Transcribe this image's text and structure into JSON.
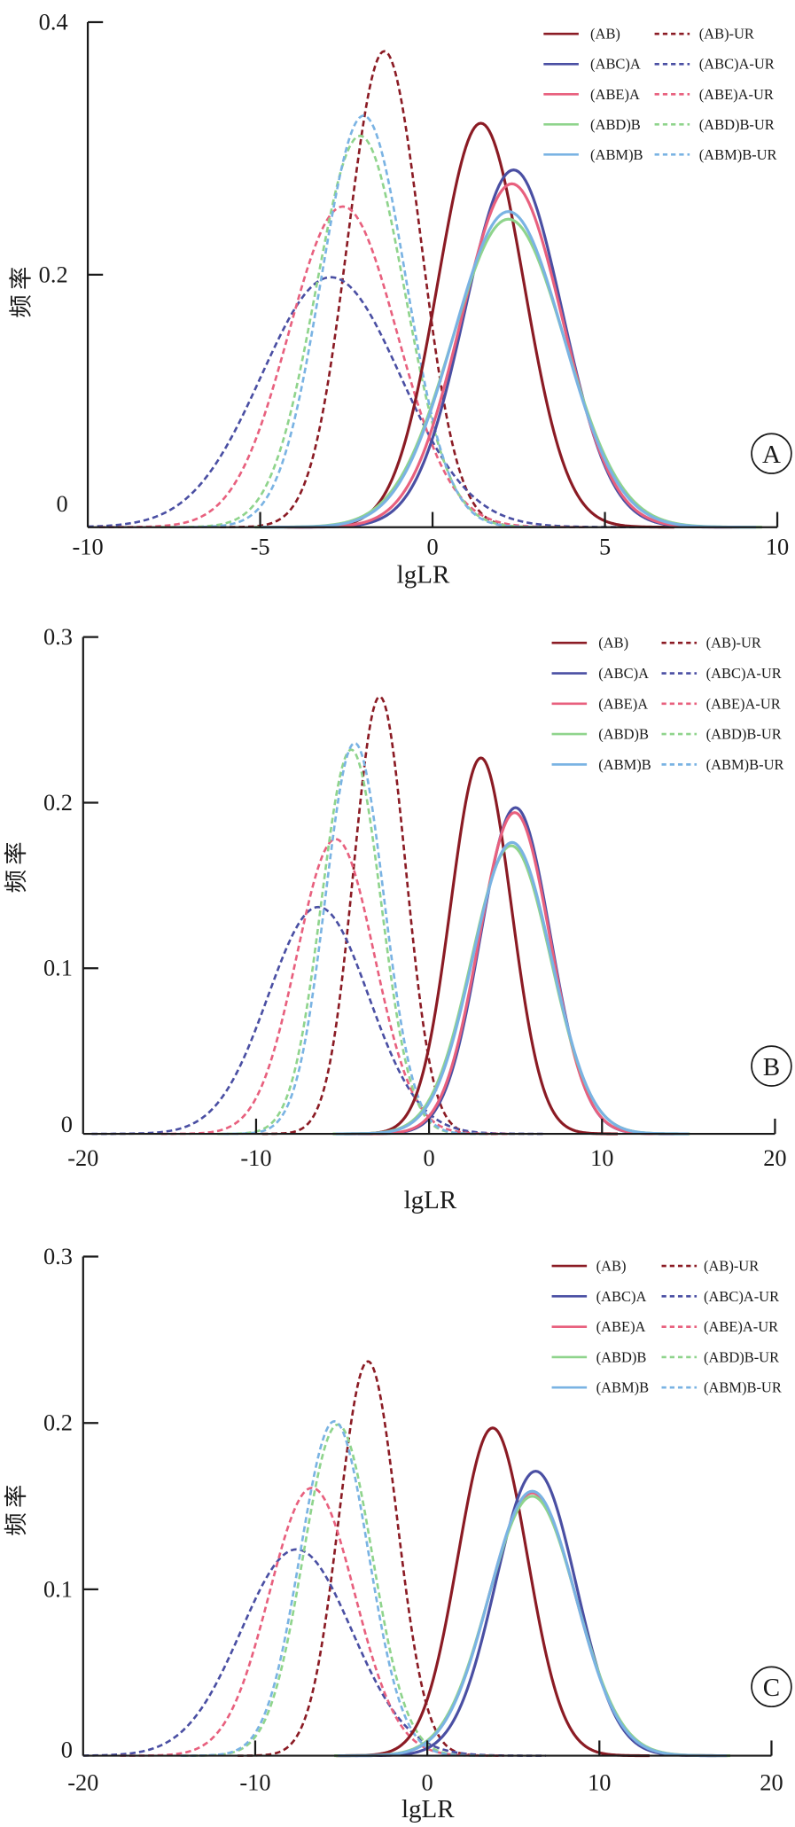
{
  "chart_data": [
    {
      "type": "line",
      "panel_label": "A",
      "xlabel": "lgLR",
      "ylabel": "频率",
      "xlim": [
        -10,
        10
      ],
      "ylim": [
        0,
        0.4
      ],
      "xticks": [
        "-10",
        "-5",
        "0",
        "5",
        "10"
      ],
      "yticks": [
        "0",
        "0.2",
        "0.4"
      ],
      "grid": false,
      "legend_position": "top-right",
      "series": [
        {
          "name": "(AB)",
          "color": "#8b1b24",
          "style": "solid",
          "peak_x": 1.4,
          "peak_y": 0.32
        },
        {
          "name": "(AB)-UR",
          "color": "#8b1b24",
          "style": "dashed",
          "peak_x": -1.4,
          "peak_y": 0.377
        },
        {
          "name": "(ABC)A",
          "color": "#4a4fa3",
          "style": "solid",
          "peak_x": 2.35,
          "peak_y": 0.283
        },
        {
          "name": "(ABC)A-UR",
          "color": "#4a4fa3",
          "style": "dashed",
          "peak_x": -2.95,
          "peak_y": 0.198
        },
        {
          "name": "(ABE)A",
          "color": "#e8607e",
          "style": "solid",
          "peak_x": 2.3,
          "peak_y": 0.272
        },
        {
          "name": "(ABE)A-UR",
          "color": "#e8607e",
          "style": "dashed",
          "peak_x": -2.6,
          "peak_y": 0.254
        },
        {
          "name": "(ABD)B",
          "color": "#8fd48c",
          "style": "solid",
          "peak_x": 2.2,
          "peak_y": 0.244
        },
        {
          "name": "(ABD)B-UR",
          "color": "#8fd48c",
          "style": "dashed",
          "peak_x": -2.1,
          "peak_y": 0.31
        },
        {
          "name": "(ABM)B",
          "color": "#7ab3e3",
          "style": "solid",
          "peak_x": 2.2,
          "peak_y": 0.25
        },
        {
          "name": "(ABM)B-UR",
          "color": "#7ab3e3",
          "style": "dashed",
          "peak_x": -2.0,
          "peak_y": 0.326
        }
      ]
    },
    {
      "type": "line",
      "panel_label": "B",
      "xlabel": "lgLR",
      "ylabel": "频率",
      "xlim": [
        -20,
        20
      ],
      "ylim": [
        0,
        0.3
      ],
      "xticks": [
        "-20",
        "-10",
        "0",
        "10",
        "20"
      ],
      "yticks": [
        "0",
        "0.1",
        "0.2",
        "0.3"
      ],
      "grid": false,
      "legend_position": "top-right",
      "series": [
        {
          "name": "(AB)",
          "color": "#8b1b24",
          "style": "solid",
          "peak_x": 3.0,
          "peak_y": 0.227
        },
        {
          "name": "(AB)-UR",
          "color": "#8b1b24",
          "style": "dashed",
          "peak_x": -2.85,
          "peak_y": 0.264
        },
        {
          "name": "(ABC)A",
          "color": "#4a4fa3",
          "style": "solid",
          "peak_x": 5.0,
          "peak_y": 0.197
        },
        {
          "name": "(ABC)A-UR",
          "color": "#4a4fa3",
          "style": "dashed",
          "peak_x": -6.4,
          "peak_y": 0.137
        },
        {
          "name": "(ABE)A",
          "color": "#e8607e",
          "style": "solid",
          "peak_x": 4.95,
          "peak_y": 0.194
        },
        {
          "name": "(ABE)A-UR",
          "color": "#e8607e",
          "style": "dashed",
          "peak_x": -5.4,
          "peak_y": 0.178
        },
        {
          "name": "(ABD)B",
          "color": "#8fd48c",
          "style": "solid",
          "peak_x": 4.75,
          "peak_y": 0.174
        },
        {
          "name": "(ABD)B-UR",
          "color": "#8fd48c",
          "style": "dashed",
          "peak_x": -4.5,
          "peak_y": 0.232
        },
        {
          "name": "(ABM)B",
          "color": "#7ab3e3",
          "style": "solid",
          "peak_x": 4.8,
          "peak_y": 0.176
        },
        {
          "name": "(ABM)B-UR",
          "color": "#7ab3e3",
          "style": "dashed",
          "peak_x": -4.3,
          "peak_y": 0.236
        }
      ]
    },
    {
      "type": "line",
      "panel_label": "C",
      "xlabel": "lgLR",
      "ylabel": "频率",
      "xlim": [
        -20,
        20
      ],
      "ylim": [
        0,
        0.3
      ],
      "xticks": [
        "-20",
        "-10",
        "0",
        "10",
        "20"
      ],
      "yticks": [
        "0",
        "0.1",
        "0.2",
        "0.3"
      ],
      "grid": false,
      "legend_position": "top-right",
      "series": [
        {
          "name": "(AB)",
          "color": "#8b1b24",
          "style": "solid",
          "peak_x": 3.8,
          "peak_y": 0.197
        },
        {
          "name": "(AB)-UR",
          "color": "#8b1b24",
          "style": "dashed",
          "peak_x": -3.45,
          "peak_y": 0.237
        },
        {
          "name": "(ABC)A",
          "color": "#4a4fa3",
          "style": "solid",
          "peak_x": 6.3,
          "peak_y": 0.171
        },
        {
          "name": "(ABC)A-UR",
          "color": "#4a4fa3",
          "style": "dashed",
          "peak_x": -7.6,
          "peak_y": 0.124
        },
        {
          "name": "(ABE)A",
          "color": "#e8607e",
          "style": "solid",
          "peak_x": 6.1,
          "peak_y": 0.158
        },
        {
          "name": "(ABE)A-UR",
          "color": "#e8607e",
          "style": "dashed",
          "peak_x": -6.7,
          "peak_y": 0.161
        },
        {
          "name": "(ABD)B",
          "color": "#8fd48c",
          "style": "solid",
          "peak_x": 6.1,
          "peak_y": 0.156
        },
        {
          "name": "(ABD)B-UR",
          "color": "#8fd48c",
          "style": "dashed",
          "peak_x": -5.2,
          "peak_y": 0.199
        },
        {
          "name": "(ABM)B",
          "color": "#7ab3e3",
          "style": "solid",
          "peak_x": 6.1,
          "peak_y": 0.159
        },
        {
          "name": "(ABM)B-UR",
          "color": "#7ab3e3",
          "style": "dashed",
          "peak_x": -5.4,
          "peak_y": 0.201
        }
      ]
    }
  ]
}
